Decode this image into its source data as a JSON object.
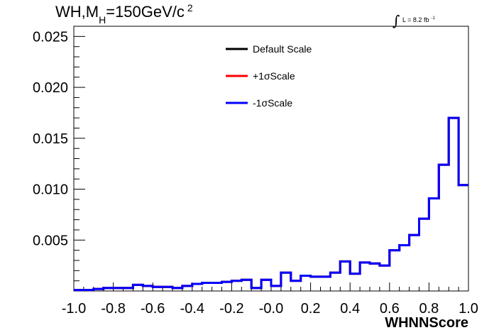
{
  "chart_data": {
    "type": "line",
    "title": {
      "pre": "WH,M",
      "sub": "H",
      "post": "=150GeV/c",
      "sup": "2"
    },
    "lumi": {
      "text": "L = 8.2 fb",
      "sup": "-1"
    },
    "xlabel": "WHNNScore",
    "ylabel": "",
    "xlim": [
      -1.0,
      1.0
    ],
    "ylim": [
      0,
      0.026
    ],
    "x_ticks": [
      "-1.0",
      "-0.8",
      "-0.6",
      "-0.4",
      "-0.2",
      "-0.0",
      "0.2",
      "0.4",
      "0.6",
      "0.8",
      "1.0"
    ],
    "y_ticks": [
      "0.005",
      "0.010",
      "0.015",
      "0.020",
      "0.025"
    ],
    "grid": false,
    "legend_position": "top-center",
    "bin_edges": [
      -1.0,
      -0.95,
      -0.9,
      -0.85,
      -0.8,
      -0.75,
      -0.7,
      -0.65,
      -0.6,
      -0.55,
      -0.5,
      -0.45,
      -0.4,
      -0.35,
      -0.3,
      -0.25,
      -0.2,
      -0.15,
      -0.1,
      -0.05,
      0.0,
      0.05,
      0.1,
      0.15,
      0.2,
      0.25,
      0.3,
      0.35,
      0.4,
      0.45,
      0.5,
      0.55,
      0.6,
      0.65,
      0.7,
      0.75,
      0.8,
      0.85,
      0.9,
      0.95,
      1.0
    ],
    "series": [
      {
        "name": "Default Scale",
        "color": "#000000",
        "values": [
          0.0001,
          0.0001,
          0.0002,
          0.0003,
          0.0003,
          0.0003,
          0.0006,
          0.0005,
          0.0004,
          0.0004,
          0.0003,
          0.0005,
          0.0007,
          0.0008,
          0.0008,
          0.0009,
          0.001,
          0.0011,
          0.0003,
          0.0011,
          0.0005,
          0.0018,
          0.001,
          0.0015,
          0.0014,
          0.0014,
          0.0018,
          0.0029,
          0.0017,
          0.0028,
          0.0027,
          0.0025,
          0.004,
          0.0045,
          0.0055,
          0.0071,
          0.0091,
          0.0124,
          0.017,
          0.0104
        ]
      },
      {
        "name": "+1σScale",
        "color": "#ff0000",
        "values": [
          0.0001,
          0.0001,
          0.0002,
          0.0003,
          0.0003,
          0.0003,
          0.0006,
          0.0005,
          0.0004,
          0.0004,
          0.0003,
          0.0005,
          0.0007,
          0.0008,
          0.0008,
          0.0009,
          0.001,
          0.0011,
          0.0003,
          0.0011,
          0.0005,
          0.0018,
          0.001,
          0.0015,
          0.0014,
          0.0014,
          0.0018,
          0.0029,
          0.0017,
          0.0028,
          0.0027,
          0.0025,
          0.004,
          0.0045,
          0.0055,
          0.0071,
          0.0091,
          0.0124,
          0.017,
          0.0104
        ]
      },
      {
        "name": "-1σScale",
        "color": "#0000ff",
        "values": [
          0.0001,
          0.0001,
          0.0002,
          0.0003,
          0.0003,
          0.0003,
          0.0006,
          0.0005,
          0.0004,
          0.0004,
          0.0003,
          0.0005,
          0.0007,
          0.0008,
          0.0008,
          0.0009,
          0.001,
          0.0011,
          0.0003,
          0.0011,
          0.0005,
          0.0018,
          0.001,
          0.0015,
          0.0014,
          0.0014,
          0.0018,
          0.0029,
          0.0017,
          0.0028,
          0.0027,
          0.0025,
          0.004,
          0.0045,
          0.0055,
          0.0071,
          0.0091,
          0.0124,
          0.017,
          0.0104
        ]
      }
    ]
  }
}
